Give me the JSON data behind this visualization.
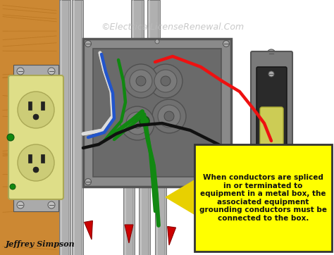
{
  "bg_color": "#ffffff",
  "watermark": "©ElectricalLicenseRenewal.Com",
  "watermark_color": "#bbbbbb",
  "credit": "Jeffrey Simpson",
  "credit_color": "#111111",
  "note_text": "When conductors are spliced\nin or terminated to\nequipment in a metal box, the\nassociated equipment\ngrounding conductors must be\nconnected to the box.",
  "note_bg": "#ffff00",
  "note_border": "#333333",
  "note_text_color": "#111111",
  "arrow_fill": "#e8d000",
  "wood_light": "#cc8833",
  "wood_dark": "#aa6611",
  "wood_mid": "#bb7722",
  "metal_gray": "#8a8a8a",
  "metal_dark": "#555555",
  "metal_light": "#aaaaaa",
  "metal_inner": "#6a6a6a",
  "outlet_body": "#dede88",
  "outlet_border": "#aaa855",
  "outlet_face": "#cccc77",
  "switch_plate": "#7a7a7a",
  "switch_dark": "#2a2a2a",
  "switch_toggle": "#cccc55",
  "conduit_fill": "#b0b0b0",
  "conduit_edge": "#777777",
  "conduit_hi": "#d5d5d5",
  "wire_red": "#ee1111",
  "wire_black": "#111111",
  "wire_white": "#dddddd",
  "wire_green": "#118811",
  "wire_blue": "#2255cc",
  "red_marker": "#cc0000",
  "figsize": [
    4.74,
    3.62
  ],
  "dpi": 100
}
